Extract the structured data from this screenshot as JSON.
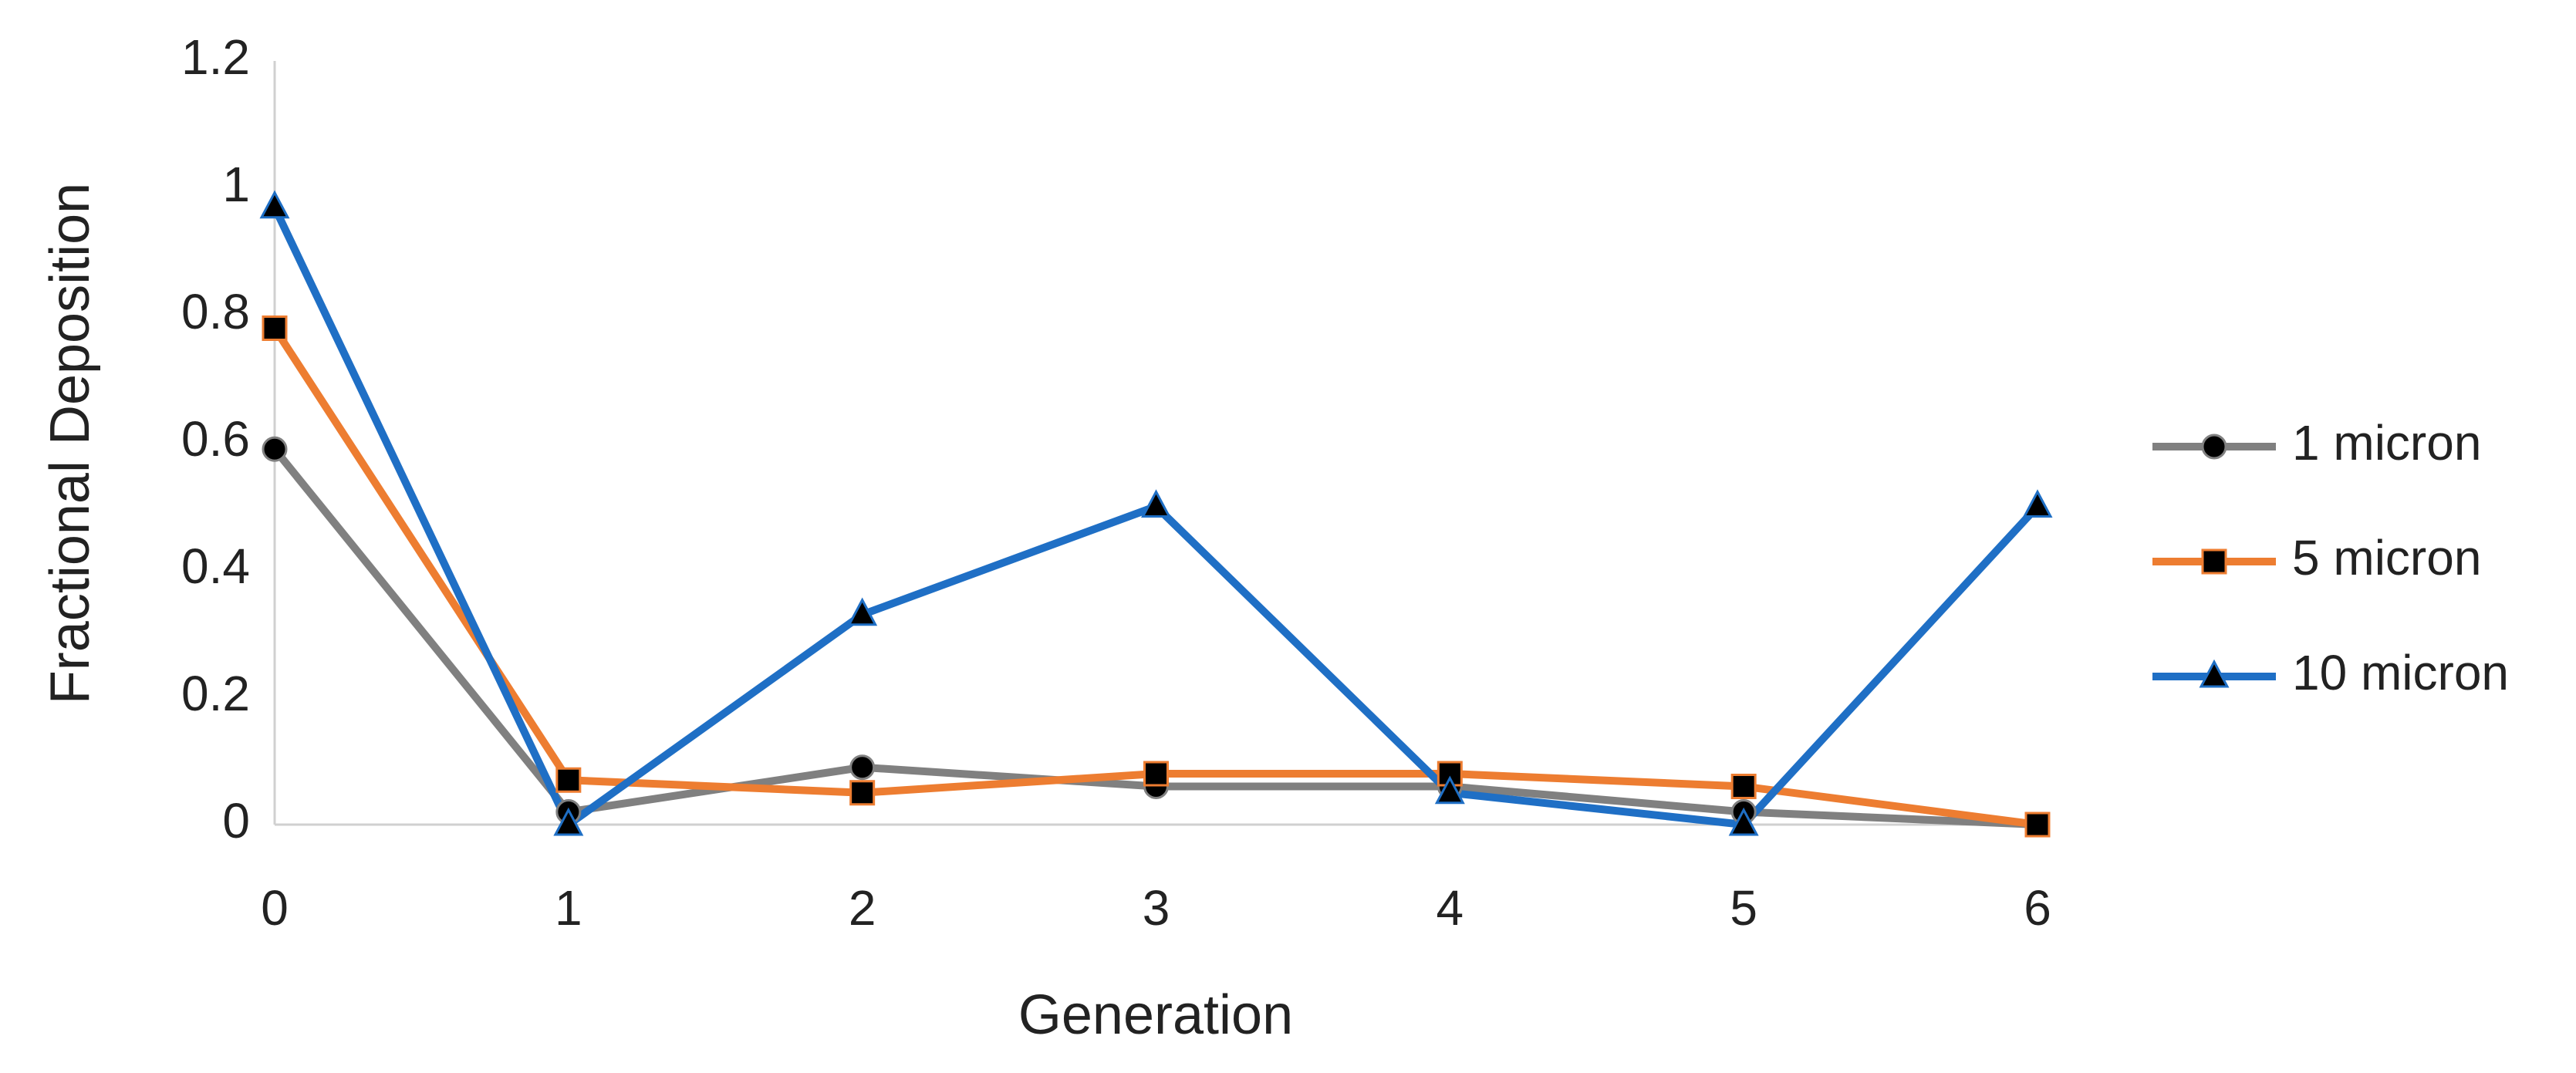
{
  "chart_data": {
    "type": "line",
    "x_label": "Generation",
    "y_label": "Fractional Deposition",
    "x": [
      0,
      1,
      2,
      3,
      4,
      5,
      6
    ],
    "series": [
      {
        "name": "1 micron",
        "color": "#808080",
        "marker": "circle",
        "values": [
          0.59,
          0.02,
          0.09,
          0.06,
          0.06,
          0.02,
          0
        ]
      },
      {
        "name": "5 micron",
        "color": "#ed7d31",
        "marker": "square",
        "values": [
          0.78,
          0.07,
          0.05,
          0.08,
          0.08,
          0.06,
          0
        ]
      },
      {
        "name": "10 micron",
        "color": "#1f6fc5",
        "marker": "triangle",
        "values": [
          0.97,
          0,
          0.33,
          0.5,
          0.05,
          0,
          0.5
        ]
      }
    ],
    "xlim": [
      0,
      6
    ],
    "xticks": [
      0,
      1,
      2,
      3,
      4,
      5,
      6
    ],
    "ylim": [
      0,
      1.2
    ],
    "yticks": [
      0,
      0.2,
      0.4,
      0.6,
      0.8,
      1,
      1.2
    ],
    "grid": false,
    "legend": "right"
  }
}
